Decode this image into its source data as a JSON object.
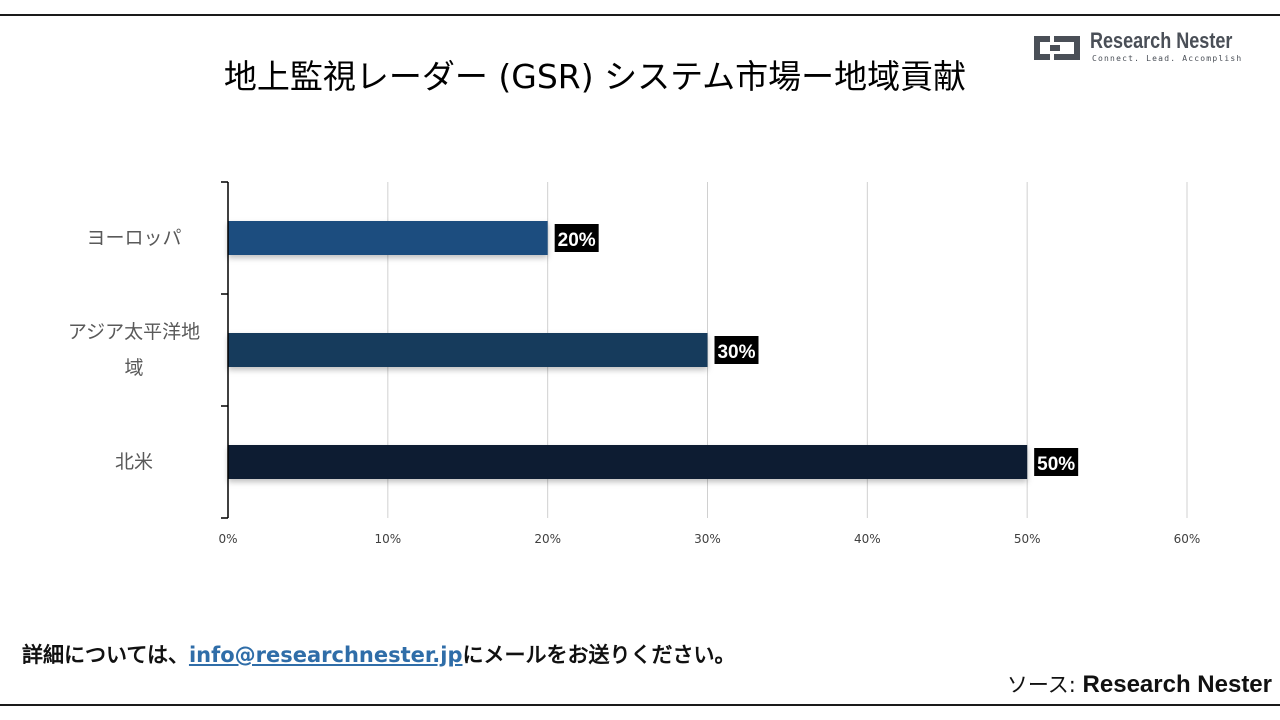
{
  "title": "地上監視レーダー (GSR) システム市場ー地域貢献",
  "logo": {
    "name": "Research Nester",
    "tagline": "Connect. Lead. Accomplish"
  },
  "chart_data": {
    "type": "bar",
    "orientation": "horizontal",
    "categories": [
      "ヨーロッパ",
      "アジア太平洋地域",
      "北米"
    ],
    "category_label_lines": [
      [
        "ヨーロッパ"
      ],
      [
        "アジア太平洋地",
        "域"
      ],
      [
        "北米"
      ]
    ],
    "values": [
      20,
      30,
      50
    ],
    "data_labels": [
      "20%",
      "30%",
      "50%"
    ],
    "bar_colors": [
      "#1f4e7f",
      "#183a5c",
      "#0f1f30"
    ],
    "xlim": [
      0,
      60
    ],
    "x_ticks": [
      0,
      10,
      20,
      30,
      40,
      50,
      60
    ],
    "x_tick_labels": [
      "0%",
      "10%",
      "20%",
      "30%",
      "40%",
      "50%",
      "60%"
    ],
    "grid": true,
    "legend": "none"
  },
  "footer": {
    "prefix": "詳細については、",
    "email": "info@researchnester.jp",
    "suffix": "にメールをお送りください。"
  },
  "source": {
    "label": "ソース: ",
    "value": "Research Nester"
  }
}
